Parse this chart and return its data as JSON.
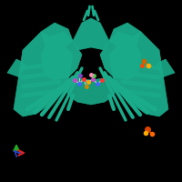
{
  "background_color": "#000000",
  "protein_color": "#1aab8a",
  "axis_x_color": "#dd2222",
  "axis_y_color": "#22aa22",
  "axis_z_color": "#2244cc",
  "figsize": [
    2.0,
    2.0
  ],
  "dpi": 100
}
